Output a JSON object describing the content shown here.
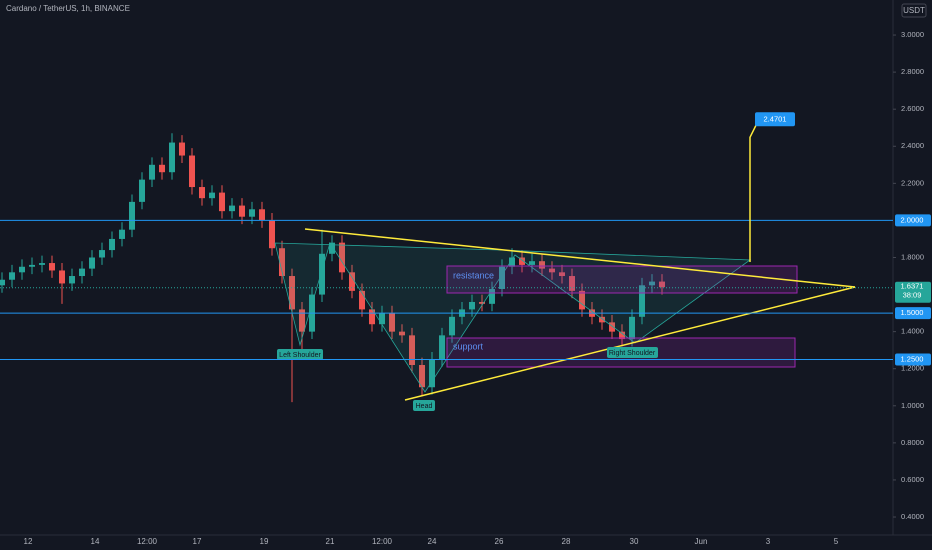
{
  "chart_data": {
    "type": "candlestick",
    "title": "Cardano / TetherUS, 1h, BINANCE",
    "currency": "USDT",
    "ylim": [
      0.303,
      3.189
    ],
    "yticks": [
      {
        "value": 3,
        "label": "3.0000"
      },
      {
        "value": 2.8,
        "label": "2.8000"
      },
      {
        "value": 2.6,
        "label": "2.6000"
      },
      {
        "value": 2.4,
        "label": "2.4000"
      },
      {
        "value": 2.2,
        "label": "2.2000"
      },
      {
        "value": 1.8,
        "label": "1.8000"
      },
      {
        "value": 1.4,
        "label": "1.4000"
      },
      {
        "value": 1.2,
        "label": "1.2000"
      },
      {
        "value": 1,
        "label": "1.0000"
      },
      {
        "value": 0.8,
        "label": "0.8000"
      },
      {
        "value": 0.6,
        "label": "0.6000"
      },
      {
        "value": 0.4,
        "label": "0.4000"
      }
    ],
    "x_labels": [
      "12",
      "14",
      "12:00",
      "17",
      "19",
      "21",
      "12:00",
      "24",
      "26",
      "28",
      "30",
      "Jun",
      "3",
      "5"
    ],
    "open": [
      1.65,
      1.68,
      1.72,
      1.75,
      1.76,
      1.77,
      1.73,
      1.66,
      1.7,
      1.74,
      1.8,
      1.84,
      1.9,
      1.95,
      2.1,
      2.22,
      2.3,
      2.26,
      2.42,
      2.35,
      2.18,
      2.12,
      2.15,
      2.05,
      2.08,
      2.02,
      2.06,
      2.0,
      1.85,
      1.7,
      1.52,
      1.4,
      1.6,
      1.82,
      1.88,
      1.72,
      1.62,
      1.52,
      1.44,
      1.5,
      1.4,
      1.38,
      1.22,
      1.1,
      1.25,
      1.38,
      1.48,
      1.52,
      1.56,
      1.55,
      1.63,
      1.75,
      1.8,
      1.76,
      1.78,
      1.74,
      1.72,
      1.7,
      1.62,
      1.52,
      1.48,
      1.45,
      1.4,
      1.36,
      1.48,
      1.65,
      1.67
    ],
    "high": [
      1.72,
      1.76,
      1.79,
      1.8,
      1.81,
      1.81,
      1.77,
      1.74,
      1.78,
      1.84,
      1.88,
      1.94,
      1.99,
      2.14,
      2.26,
      2.34,
      2.34,
      2.47,
      2.46,
      2.39,
      2.22,
      2.19,
      2.19,
      2.12,
      2.12,
      2.1,
      2.1,
      2.04,
      1.89,
      1.74,
      1.56,
      1.64,
      1.95,
      1.92,
      1.92,
      1.76,
      1.66,
      1.56,
      1.54,
      1.54,
      1.44,
      1.42,
      1.26,
      1.29,
      1.42,
      1.52,
      1.56,
      1.6,
      1.6,
      1.67,
      1.79,
      1.85,
      1.84,
      1.82,
      1.82,
      1.78,
      1.76,
      1.74,
      1.66,
      1.56,
      1.52,
      1.49,
      1.44,
      1.52,
      1.69,
      1.71,
      1.71
    ],
    "low": [
      1.61,
      1.64,
      1.68,
      1.71,
      1.72,
      1.69,
      1.55,
      1.62,
      1.66,
      1.7,
      1.76,
      1.8,
      1.86,
      1.91,
      2.06,
      2.18,
      2.22,
      2.22,
      2.31,
      2.14,
      2.08,
      2.08,
      2.01,
      2.01,
      1.98,
      1.98,
      1.96,
      1.81,
      1.66,
      1.02,
      1.3,
      1.36,
      1.56,
      1.78,
      1.68,
      1.58,
      1.48,
      1.4,
      1.4,
      1.36,
      1.34,
      1.18,
      1.05,
      1.06,
      1.21,
      1.34,
      1.44,
      1.48,
      1.51,
      1.51,
      1.59,
      1.71,
      1.72,
      1.72,
      1.7,
      1.68,
      1.66,
      1.58,
      1.48,
      1.44,
      1.41,
      1.36,
      1.32,
      1.32,
      1.44,
      1.61,
      1.6
    ],
    "close": [
      1.68,
      1.72,
      1.75,
      1.76,
      1.77,
      1.73,
      1.66,
      1.7,
      1.74,
      1.8,
      1.84,
      1.9,
      1.95,
      2.1,
      2.22,
      2.3,
      2.26,
      2.42,
      2.35,
      2.18,
      2.12,
      2.15,
      2.05,
      2.08,
      2.02,
      2.06,
      2.0,
      1.85,
      1.7,
      1.52,
      1.4,
      1.6,
      1.82,
      1.88,
      1.72,
      1.62,
      1.52,
      1.44,
      1.5,
      1.4,
      1.38,
      1.22,
      1.1,
      1.25,
      1.38,
      1.48,
      1.52,
      1.56,
      1.55,
      1.63,
      1.75,
      1.8,
      1.76,
      1.78,
      1.74,
      1.72,
      1.7,
      1.62,
      1.52,
      1.48,
      1.45,
      1.4,
      1.36,
      1.48,
      1.65,
      1.67,
      1.64
    ],
    "up_color": "#26a69a",
    "down_color": "#ef5350",
    "hlines": [
      {
        "value": 2,
        "label": "2.0000"
      },
      {
        "value": 1.5,
        "label": "1.5000"
      },
      {
        "value": 1.25,
        "label": "1.2500"
      }
    ],
    "hline_color": "#2196f3",
    "target": 2.4701,
    "last_price": 1.6371,
    "countdown": "38:09",
    "annotations": {
      "resistance": "resistance",
      "support": "support",
      "left_shoulder": "Left Shoulder",
      "head": "Head",
      "right_shoulder": "Right Shoulder"
    }
  }
}
